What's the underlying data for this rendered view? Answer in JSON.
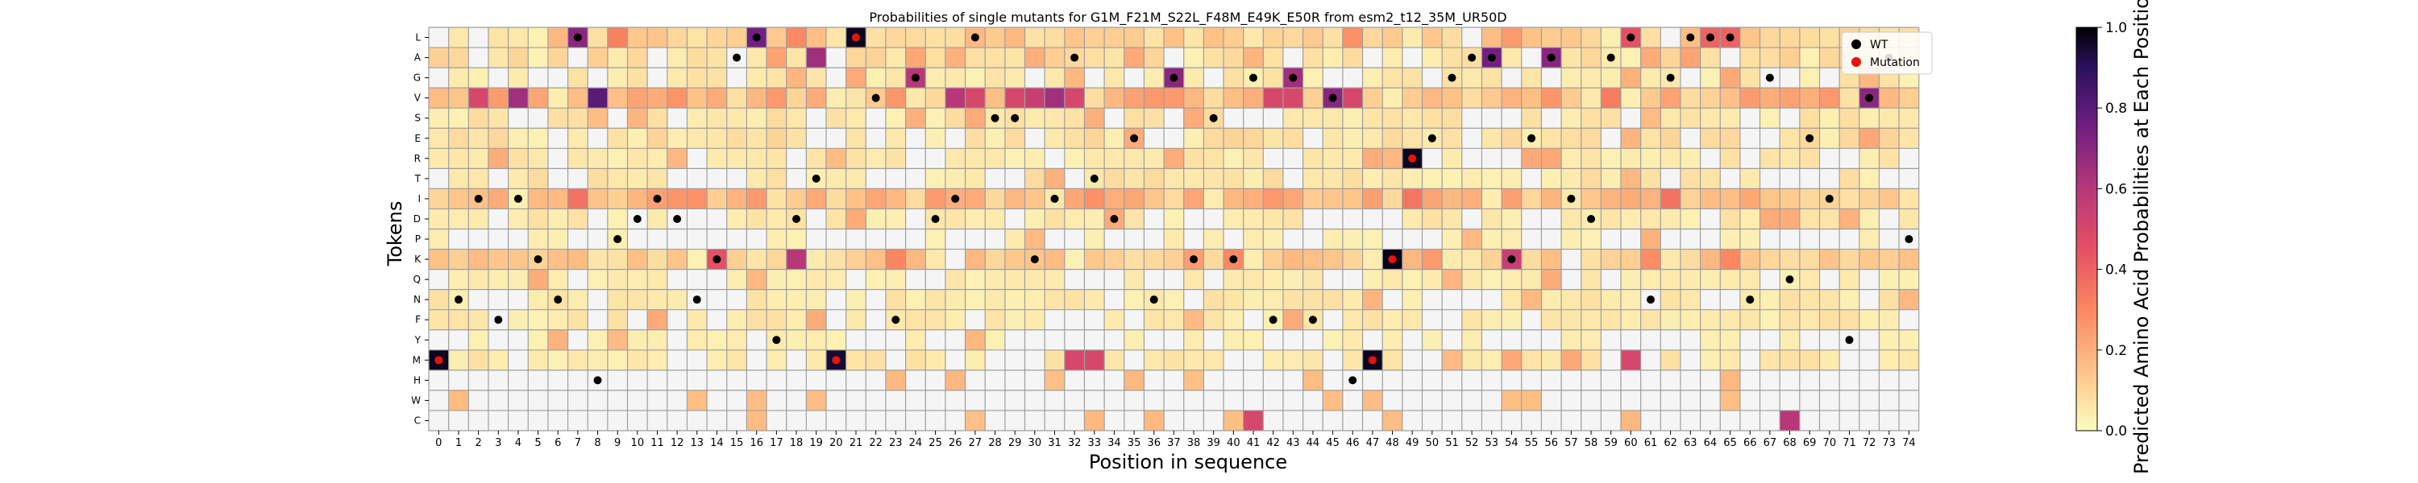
{
  "chart_data": {
    "type": "heatmap",
    "title": "Probabilities of single mutants for G1M_F21M_S22L_F48M_E49K_E50R from esm2_t12_35M_UR50D",
    "xlabel": "Position in sequence",
    "ylabel": "Tokens",
    "tokens": [
      "L",
      "A",
      "G",
      "V",
      "S",
      "E",
      "R",
      "T",
      "I",
      "D",
      "P",
      "K",
      "Q",
      "N",
      "F",
      "Y",
      "M",
      "H",
      "W",
      "C"
    ],
    "x_ticks": [
      "0",
      "1",
      "2",
      "3",
      "4",
      "5",
      "6",
      "7",
      "8",
      "9",
      "10",
      "11",
      "12",
      "13",
      "14",
      "15",
      "16",
      "17",
      "18",
      "19",
      "20",
      "21",
      "22",
      "23",
      "24",
      "25",
      "26",
      "27",
      "28",
      "29",
      "30",
      "31",
      "32",
      "33",
      "34",
      "35",
      "36",
      "37",
      "38",
      "39",
      "40",
      "41",
      "42",
      "43",
      "44",
      "45",
      "46",
      "47",
      "48",
      "49",
      "50",
      "51",
      "52",
      "53",
      "54",
      "55",
      "56",
      "57",
      "58",
      "59",
      "60",
      "61",
      "62",
      "63",
      "64",
      "65",
      "66",
      "67",
      "68",
      "69",
      "70",
      "71",
      "72",
      "73",
      "74"
    ],
    "colorbar": {
      "label": "Predicted Amino Acid Probabilities at Each Position",
      "range": [
        0.0,
        1.0
      ],
      "ticks": [
        "0.0",
        "0.2",
        "0.4",
        "0.6",
        "0.8",
        "1.0"
      ],
      "colormap": "magma_r"
    },
    "legend": {
      "position": "top-right",
      "entries": [
        {
          "label": "WT",
          "color": "#000000"
        },
        {
          "label": "Mutation",
          "color": "#e8140c"
        }
      ]
    },
    "wt_tokens": [
      "M",
      "N",
      "I",
      "F",
      "I",
      "K",
      "N",
      "L",
      "H",
      "P",
      "D",
      "I",
      "D",
      "N",
      "K",
      "A",
      "L",
      "Y",
      "D",
      "T",
      "M",
      "L",
      "V",
      "F",
      "G",
      "D",
      "I",
      "L",
      "S",
      "S",
      "K",
      "I",
      "A",
      "T",
      "D",
      "E",
      "N",
      "G",
      "K",
      "S",
      "K",
      "G",
      "F",
      "G",
      "F",
      "V",
      "H",
      "M",
      "K",
      "R",
      "E",
      "G",
      "A",
      "A",
      "K",
      "E",
      "A",
      "I",
      "D",
      "A",
      "L",
      "N",
      "G",
      "L",
      "L",
      "L",
      "N",
      "G",
      "Q",
      "E",
      "I",
      "Y",
      "V",
      "A",
      "P"
    ],
    "mutation_positions": [
      0,
      20,
      21,
      47,
      48,
      49
    ],
    "high_prob_cells": [
      {
        "pos": 0,
        "token": "M",
        "p": 0.97
      },
      {
        "pos": 7,
        "token": "L",
        "p": 0.7
      },
      {
        "pos": 16,
        "token": "L",
        "p": 0.75
      },
      {
        "pos": 19,
        "token": "A",
        "p": 0.65
      },
      {
        "pos": 21,
        "token": "L",
        "p": 0.97
      },
      {
        "pos": 20,
        "token": "M",
        "p": 0.95
      },
      {
        "pos": 8,
        "token": "V",
        "p": 0.8
      },
      {
        "pos": 4,
        "token": "V",
        "p": 0.65
      },
      {
        "pos": 2,
        "token": "V",
        "p": 0.5
      },
      {
        "pos": 26,
        "token": "V",
        "p": 0.6
      },
      {
        "pos": 27,
        "token": "V",
        "p": 0.5
      },
      {
        "pos": 29,
        "token": "V",
        "p": 0.5
      },
      {
        "pos": 30,
        "token": "V",
        "p": 0.55
      },
      {
        "pos": 31,
        "token": "V",
        "p": 0.65
      },
      {
        "pos": 32,
        "token": "V",
        "p": 0.5
      },
      {
        "pos": 42,
        "token": "V",
        "p": 0.5
      },
      {
        "pos": 43,
        "token": "V",
        "p": 0.5
      },
      {
        "pos": 45,
        "token": "V",
        "p": 0.7
      },
      {
        "pos": 46,
        "token": "V",
        "p": 0.5
      },
      {
        "pos": 72,
        "token": "V",
        "p": 0.7
      },
      {
        "pos": 24,
        "token": "G",
        "p": 0.6
      },
      {
        "pos": 37,
        "token": "G",
        "p": 0.7
      },
      {
        "pos": 43,
        "token": "G",
        "p": 0.65
      },
      {
        "pos": 53,
        "token": "A",
        "p": 0.75
      },
      {
        "pos": 56,
        "token": "A",
        "p": 0.7
      },
      {
        "pos": 49,
        "token": "R",
        "p": 0.97
      },
      {
        "pos": 48,
        "token": "K",
        "p": 0.98
      },
      {
        "pos": 18,
        "token": "K",
        "p": 0.6
      },
      {
        "pos": 54,
        "token": "K",
        "p": 0.55
      },
      {
        "pos": 68,
        "token": "C",
        "p": 0.6
      },
      {
        "pos": 41,
        "token": "C",
        "p": 0.5
      },
      {
        "pos": 47,
        "token": "M",
        "p": 0.97
      },
      {
        "pos": 32,
        "token": "M",
        "p": 0.5
      },
      {
        "pos": 33,
        "token": "M",
        "p": 0.5
      },
      {
        "pos": 60,
        "token": "M",
        "p": 0.5
      },
      {
        "pos": 14,
        "token": "K",
        "p": 0.45
      },
      {
        "pos": 60,
        "token": "L",
        "p": 0.45
      },
      {
        "pos": 64,
        "token": "L",
        "p": 0.4
      },
      {
        "pos": 65,
        "token": "L",
        "p": 0.4
      }
    ]
  }
}
